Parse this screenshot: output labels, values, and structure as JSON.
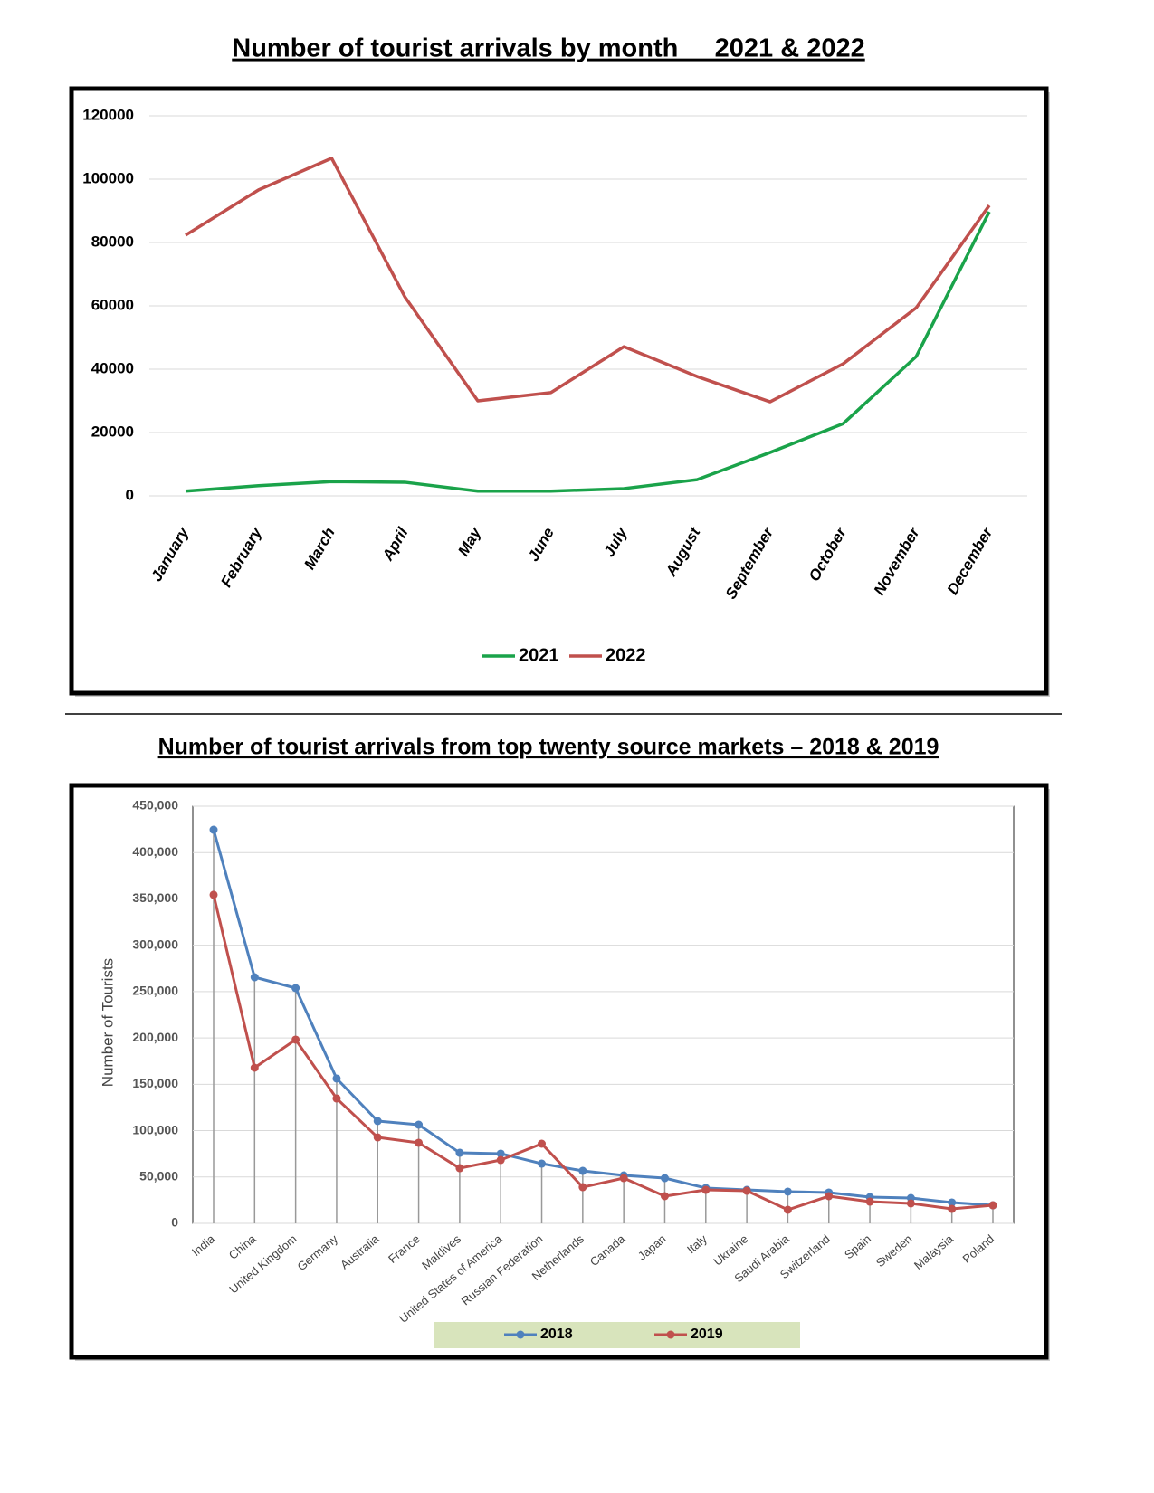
{
  "chart_data": [
    {
      "type": "line",
      "title": "Number of tourist arrivals by month     2021 & 2022",
      "categories": [
        "January",
        "February",
        "March",
        "April",
        "May",
        "June",
        "July",
        "August",
        "September",
        "October",
        "November",
        "December"
      ],
      "series": [
        {
          "name": "2021",
          "color": "#1aa34a",
          "values": [
            1500,
            3200,
            4500,
            4300,
            1500,
            1500,
            2300,
            5100,
            13700,
            22800,
            44000,
            89700
          ]
        },
        {
          "name": "2022",
          "color": "#c0504d",
          "values": [
            82300,
            96600,
            106600,
            62900,
            30000,
            32600,
            47100,
            37700,
            29700,
            41700,
            59400,
            91700
          ]
        }
      ],
      "ylim": [
        0,
        120000
      ],
      "yticks": [
        0,
        20000,
        40000,
        60000,
        80000,
        100000,
        120000
      ],
      "grid": true,
      "legend": "bottom",
      "markers": false
    },
    {
      "type": "line",
      "title": "Number of tourist arrivals from top twenty source markets – 2018 & 2019",
      "y_label": "Number of Tourists",
      "categories": [
        "India",
        "China",
        "United Kingdom",
        "Germany",
        "Australia",
        "France",
        "Maldives",
        "United States of America",
        "Russian Federation",
        "Netherlands",
        "Canada",
        "Japan",
        "Italy",
        "Ukraine",
        "Saudi Arabia",
        "Switzerland",
        "Spain",
        "Sweden",
        "Malaysia",
        "Poland"
      ],
      "series": [
        {
          "name": "2018",
          "color": "#4f81bd",
          "values": [
            424600,
            265500,
            253800,
            156200,
            110300,
            106400,
            76100,
            75200,
            64400,
            56600,
            51700,
            48800,
            38100,
            36100,
            34200,
            33200,
            28300,
            27300,
            22500,
            19500
          ]
        },
        {
          "name": "2019",
          "color": "#c0504d",
          "values": [
            354400,
            167900,
            198200,
            134700,
            92700,
            86900,
            59500,
            68300,
            85900,
            39000,
            48800,
            29300,
            36100,
            35100,
            14600,
            29300,
            23400,
            21500,
            15600,
            19500
          ]
        }
      ],
      "ylim": [
        0,
        450000
      ],
      "yticks": [
        {
          "value": 0,
          "label": "0"
        },
        {
          "value": 50000,
          "label": "50,000"
        },
        {
          "value": 100000,
          "label": "100,000"
        },
        {
          "value": 150000,
          "label": "150,000"
        },
        {
          "value": 200000,
          "label": "200,000"
        },
        {
          "value": 250000,
          "label": "250,000"
        },
        {
          "value": 300000,
          "label": "300,000"
        },
        {
          "value": 350000,
          "label": "350,000"
        },
        {
          "value": 400000,
          "label": "400,000"
        },
        {
          "value": 450000,
          "label": "450,000"
        }
      ],
      "grid": true,
      "legend": "bottom",
      "markers": true
    }
  ]
}
